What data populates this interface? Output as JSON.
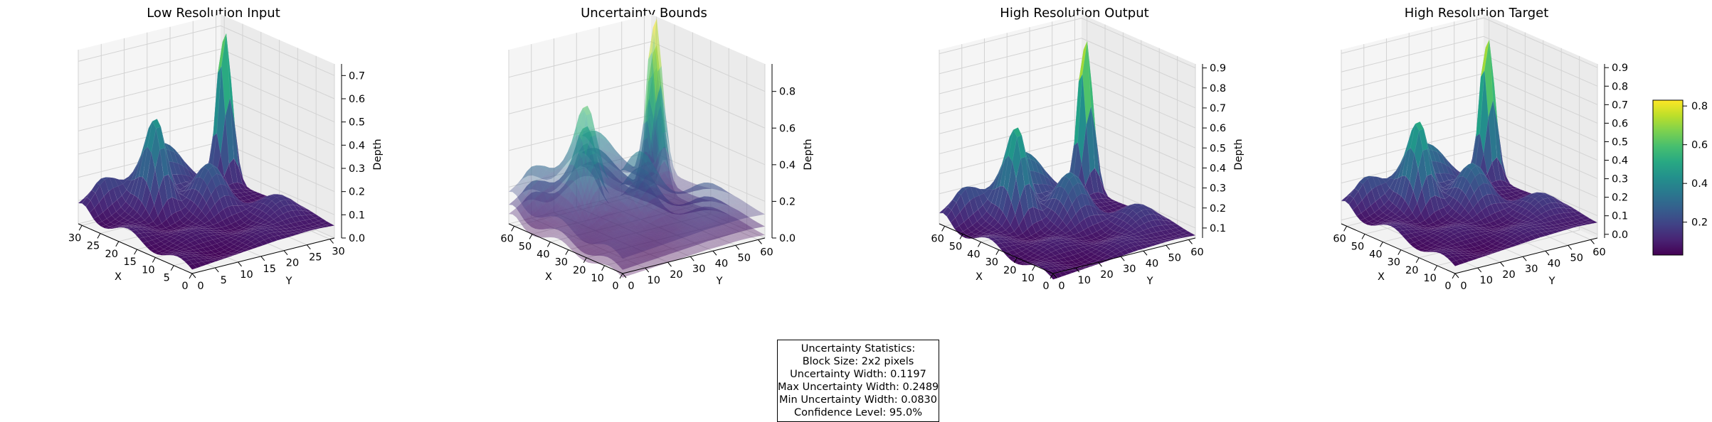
{
  "chart_data": [
    {
      "type": "surface3d",
      "title": "Low Resolution Input",
      "xlabel": "X",
      "ylabel": "Y",
      "zlabel": "Depth",
      "x_ticks": [
        "0",
        "5",
        "10",
        "15",
        "20",
        "25",
        "30"
      ],
      "y_ticks": [
        "0",
        "5",
        "10",
        "15",
        "20",
        "25",
        "30"
      ],
      "z_ticks": [
        "0.0",
        "0.1",
        "0.2",
        "0.3",
        "0.4",
        "0.5",
        "0.6",
        "0.7"
      ],
      "xlim": [
        0,
        31
      ],
      "ylim": [
        0,
        31
      ],
      "zlim": [
        0,
        0.75
      ],
      "colormap": "viridis"
    },
    {
      "type": "surface3d",
      "title": "Uncertainty Bounds",
      "xlabel": "X",
      "ylabel": "Y",
      "zlabel": "Depth",
      "x_ticks": [
        "0",
        "10",
        "20",
        "30",
        "40",
        "50",
        "60"
      ],
      "y_ticks": [
        "0",
        "10",
        "20",
        "30",
        "40",
        "50",
        "60"
      ],
      "z_ticks": [
        "0.0",
        "0.2",
        "0.4",
        "0.6",
        "0.8"
      ],
      "xlim": [
        0,
        63
      ],
      "ylim": [
        0,
        63
      ],
      "zlim": [
        0,
        0.95
      ],
      "colormap": "viridis",
      "surfaces": [
        "lower bound",
        "mean",
        "upper bound"
      ]
    },
    {
      "type": "surface3d",
      "title": "High Resolution Output",
      "xlabel": "X",
      "ylabel": "Y",
      "zlabel": "Depth",
      "x_ticks": [
        "0",
        "10",
        "20",
        "30",
        "40",
        "50",
        "60"
      ],
      "y_ticks": [
        "0",
        "10",
        "20",
        "30",
        "40",
        "50",
        "60"
      ],
      "z_ticks": [
        "0.1",
        "0.2",
        "0.3",
        "0.4",
        "0.5",
        "0.6",
        "0.7",
        "0.8",
        "0.9"
      ],
      "xlim": [
        0,
        63
      ],
      "ylim": [
        0,
        63
      ],
      "zlim": [
        0.05,
        0.92
      ],
      "colormap": "viridis"
    },
    {
      "type": "surface3d",
      "title": "High Resolution Target",
      "xlabel": "X",
      "ylabel": "Y",
      "zlabel": "",
      "x_ticks": [
        "0",
        "10",
        "20",
        "30",
        "40",
        "50",
        "60"
      ],
      "y_ticks": [
        "0",
        "10",
        "20",
        "30",
        "40",
        "50",
        "60"
      ],
      "z_ticks": [
        "0.0",
        "0.1",
        "0.2",
        "0.3",
        "0.4",
        "0.5",
        "0.6",
        "0.7",
        "0.8",
        "0.9"
      ],
      "xlim": [
        0,
        63
      ],
      "ylim": [
        0,
        63
      ],
      "zlim": [
        -0.02,
        0.92
      ],
      "colormap": "viridis",
      "colorbar_ticks": [
        "0.2",
        "0.4",
        "0.6",
        "0.8"
      ],
      "colorbar_range": [
        0.03,
        0.83
      ]
    }
  ],
  "stats": {
    "lines": [
      "Uncertainty Statistics:",
      "Block Size: 2x2 pixels",
      "Uncertainty Width: 0.1197",
      "Max Uncertainty Width: 0.2489",
      "Min Uncertainty Width: 0.0830",
      "Confidence Level: 95.0%"
    ]
  }
}
